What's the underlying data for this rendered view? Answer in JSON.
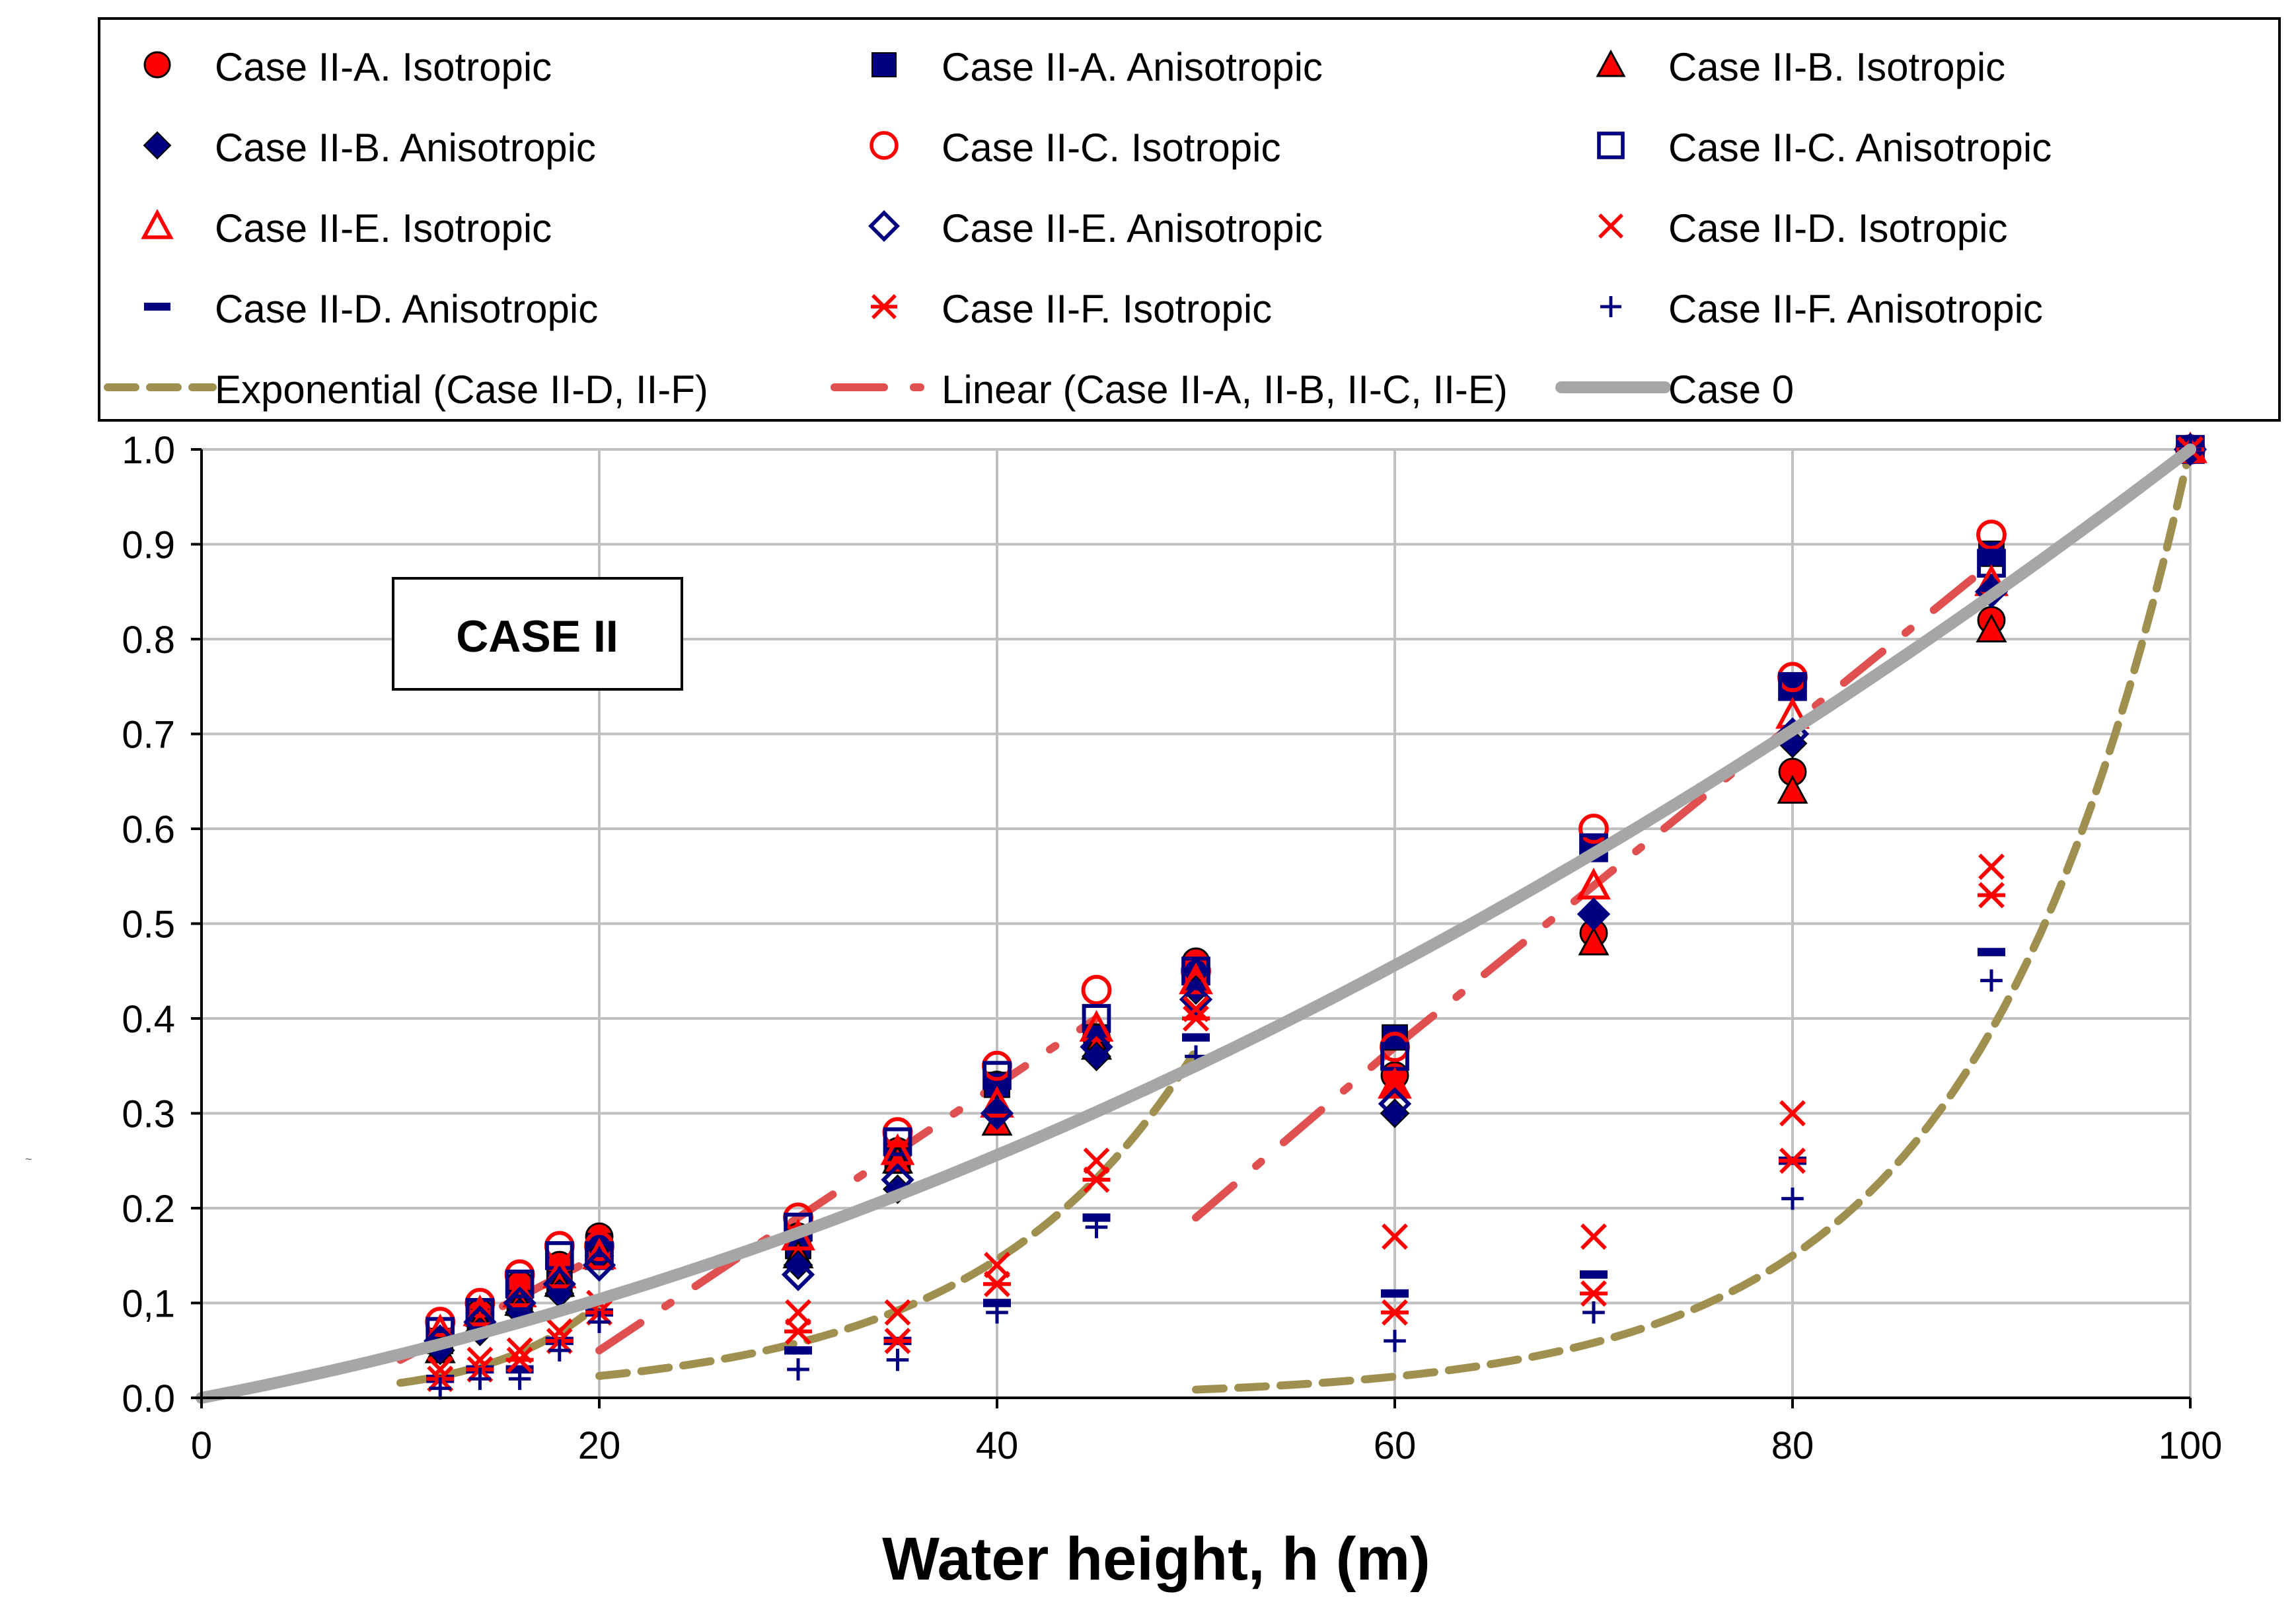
{
  "chart_data": {
    "type": "scatter",
    "title": "",
    "xlabel": "Water height, h (m)",
    "ylabel": "",
    "annotation": "CASE II",
    "stray_label": "~",
    "xlim": [
      0,
      100
    ],
    "ylim": [
      0,
      1
    ],
    "grid": true,
    "legend_position": "top",
    "x_ticks": [
      "0",
      "20",
      "40",
      "60",
      "80",
      "100"
    ],
    "y_ticks": [
      "0.0",
      "0,1",
      "0.2",
      "0.3",
      "0.4",
      "0.5",
      "0.6",
      "0.7",
      "0.8",
      "0.9",
      "1.0"
    ],
    "colors": {
      "red": "#ff0000",
      "navy": "#000080",
      "olive": "#a09050",
      "salmon": "#e05050",
      "gray": "#a6a6a6"
    },
    "series": [
      {
        "name": "Case II-A. Isotropic",
        "marker": "circle-filled",
        "color": "#ff0000",
        "points": [
          [
            12,
            0.06
          ],
          [
            14,
            0.09
          ],
          [
            16,
            0.12
          ],
          [
            18,
            0.14
          ],
          [
            20,
            0.17
          ],
          [
            30,
            0.17
          ],
          [
            35,
            0.26
          ],
          [
            40,
            0.33
          ],
          [
            45,
            0.38
          ],
          [
            50,
            0.46
          ],
          [
            60,
            0.34
          ],
          [
            70,
            0.49
          ],
          [
            80,
            0.66
          ],
          [
            90,
            0.82
          ],
          [
            100,
            1.0
          ]
        ]
      },
      {
        "name": "Case II-A. Anisotropic",
        "marker": "square-filled",
        "color": "#000080",
        "points": [
          [
            12,
            0.06
          ],
          [
            14,
            0.08
          ],
          [
            16,
            0.1
          ],
          [
            18,
            0.12
          ],
          [
            20,
            0.16
          ],
          [
            30,
            0.16
          ],
          [
            35,
            0.25
          ],
          [
            40,
            0.33
          ],
          [
            45,
            0.38
          ],
          [
            50,
            0.45
          ],
          [
            60,
            0.38
          ],
          [
            70,
            0.58
          ],
          [
            80,
            0.75
          ],
          [
            90,
            0.89
          ],
          [
            100,
            1.0
          ]
        ]
      },
      {
        "name": "Case II-B. Isotropic",
        "marker": "triangle-filled",
        "color": "#ff0000",
        "points": [
          [
            12,
            0.05
          ],
          [
            14,
            0.08
          ],
          [
            16,
            0.1
          ],
          [
            18,
            0.12
          ],
          [
            20,
            0.15
          ],
          [
            30,
            0.15
          ],
          [
            35,
            0.25
          ],
          [
            40,
            0.29
          ],
          [
            45,
            0.37
          ],
          [
            50,
            0.44
          ],
          [
            60,
            0.33
          ],
          [
            70,
            0.48
          ],
          [
            80,
            0.64
          ],
          [
            90,
            0.81
          ],
          [
            100,
            1.0
          ]
        ]
      },
      {
        "name": "Case II-B. Anisotropic",
        "marker": "diamond-filled",
        "color": "#000080",
        "points": [
          [
            12,
            0.05
          ],
          [
            14,
            0.07
          ],
          [
            16,
            0.09
          ],
          [
            18,
            0.11
          ],
          [
            20,
            0.15
          ],
          [
            30,
            0.14
          ],
          [
            35,
            0.22
          ],
          [
            40,
            0.3
          ],
          [
            45,
            0.36
          ],
          [
            50,
            0.43
          ],
          [
            60,
            0.3
          ],
          [
            70,
            0.51
          ],
          [
            80,
            0.69
          ],
          [
            90,
            0.85
          ],
          [
            100,
            1.0
          ]
        ]
      },
      {
        "name": "Case II-C. Isotropic",
        "marker": "circle-open",
        "color": "#ff0000",
        "points": [
          [
            12,
            0.08
          ],
          [
            14,
            0.1
          ],
          [
            16,
            0.13
          ],
          [
            18,
            0.16
          ],
          [
            20,
            0.16
          ],
          [
            30,
            0.19
          ],
          [
            35,
            0.28
          ],
          [
            40,
            0.35
          ],
          [
            45,
            0.43
          ],
          [
            50,
            0.45
          ],
          [
            60,
            0.37
          ],
          [
            70,
            0.6
          ],
          [
            80,
            0.76
          ],
          [
            90,
            0.91
          ],
          [
            100,
            1.0
          ]
        ]
      },
      {
        "name": "Case II-C. Anisotropic",
        "marker": "square-open",
        "color": "#000080",
        "points": [
          [
            12,
            0.07
          ],
          [
            14,
            0.09
          ],
          [
            16,
            0.12
          ],
          [
            18,
            0.15
          ],
          [
            20,
            0.15
          ],
          [
            30,
            0.18
          ],
          [
            35,
            0.27
          ],
          [
            40,
            0.34
          ],
          [
            45,
            0.4
          ],
          [
            50,
            0.45
          ],
          [
            60,
            0.36
          ],
          [
            70,
            0.58
          ],
          [
            80,
            0.75
          ],
          [
            90,
            0.88
          ],
          [
            100,
            1.0
          ]
        ]
      },
      {
        "name": "Case II-E. Isotropic",
        "marker": "triangle-open",
        "color": "#ff0000",
        "points": [
          [
            12,
            0.07
          ],
          [
            14,
            0.09
          ],
          [
            16,
            0.11
          ],
          [
            18,
            0.13
          ],
          [
            20,
            0.15
          ],
          [
            30,
            0.17
          ],
          [
            35,
            0.26
          ],
          [
            40,
            0.31
          ],
          [
            45,
            0.39
          ],
          [
            50,
            0.44
          ],
          [
            60,
            0.33
          ],
          [
            70,
            0.54
          ],
          [
            80,
            0.72
          ],
          [
            90,
            0.86
          ],
          [
            100,
            1.0
          ]
        ]
      },
      {
        "name": "Case II-E. Anisotropic",
        "marker": "diamond-open",
        "color": "#000080",
        "points": [
          [
            12,
            0.06
          ],
          [
            14,
            0.08
          ],
          [
            16,
            0.1
          ],
          [
            18,
            0.12
          ],
          [
            20,
            0.14
          ],
          [
            30,
            0.13
          ],
          [
            35,
            0.23
          ],
          [
            40,
            0.3
          ],
          [
            45,
            0.37
          ],
          [
            50,
            0.42
          ],
          [
            60,
            0.31
          ],
          [
            70,
            0.51
          ],
          [
            80,
            0.7
          ],
          [
            90,
            0.85
          ],
          [
            100,
            1.0
          ]
        ]
      },
      {
        "name": "Case II-D. Isotropic",
        "marker": "x",
        "color": "#ff0000",
        "points": [
          [
            12,
            0.03
          ],
          [
            14,
            0.04
          ],
          [
            16,
            0.05
          ],
          [
            18,
            0.07
          ],
          [
            20,
            0.1
          ],
          [
            30,
            0.09
          ],
          [
            35,
            0.09
          ],
          [
            40,
            0.14
          ],
          [
            45,
            0.25
          ],
          [
            50,
            0.41
          ],
          [
            60,
            0.17
          ],
          [
            70,
            0.17
          ],
          [
            80,
            0.3
          ],
          [
            90,
            0.56
          ],
          [
            100,
            1.0
          ]
        ]
      },
      {
        "name": "Case II-D. Anisotropic",
        "marker": "dash",
        "color": "#000080",
        "points": [
          [
            12,
            0.02
          ],
          [
            14,
            0.03
          ],
          [
            16,
            0.03
          ],
          [
            18,
            0.06
          ],
          [
            20,
            0.09
          ],
          [
            30,
            0.05
          ],
          [
            35,
            0.06
          ],
          [
            40,
            0.1
          ],
          [
            45,
            0.19
          ],
          [
            50,
            0.38
          ],
          [
            60,
            0.11
          ],
          [
            70,
            0.13
          ],
          [
            80,
            0.25
          ],
          [
            90,
            0.47
          ],
          [
            100,
            1.0
          ]
        ]
      },
      {
        "name": "Case II-F. Isotropic",
        "marker": "asterisk",
        "color": "#ff0000",
        "points": [
          [
            12,
            0.02
          ],
          [
            14,
            0.03
          ],
          [
            16,
            0.04
          ],
          [
            18,
            0.06
          ],
          [
            20,
            0.09
          ],
          [
            30,
            0.07
          ],
          [
            35,
            0.06
          ],
          [
            40,
            0.12
          ],
          [
            45,
            0.23
          ],
          [
            50,
            0.4
          ],
          [
            60,
            0.09
          ],
          [
            70,
            0.11
          ],
          [
            80,
            0.25
          ],
          [
            90,
            0.53
          ],
          [
            100,
            1.0
          ]
        ]
      },
      {
        "name": "Case II-F. Anisotropic",
        "marker": "plus",
        "color": "#000080",
        "points": [
          [
            12,
            0.01
          ],
          [
            14,
            0.02
          ],
          [
            16,
            0.02
          ],
          [
            18,
            0.05
          ],
          [
            20,
            0.08
          ],
          [
            30,
            0.03
          ],
          [
            35,
            0.04
          ],
          [
            40,
            0.09
          ],
          [
            45,
            0.18
          ],
          [
            50,
            0.36
          ],
          [
            60,
            0.06
          ],
          [
            70,
            0.09
          ],
          [
            80,
            0.21
          ],
          [
            90,
            0.44
          ],
          [
            100,
            1.0
          ]
        ]
      }
    ],
    "trendlines": [
      {
        "name": "Exponential (Case II-D, II-F)",
        "label": "Exponential (Case II-D, II-F)",
        "style": "dashed",
        "color": "#a09050",
        "segments": [
          {
            "from": 10,
            "to": 20,
            "a": 0.0025,
            "b": 0.1844
          },
          {
            "from": 20,
            "to": 50,
            "a": 0.00365,
            "b": 0.0922
          },
          {
            "from": 50,
            "to": 100,
            "a": 7.5e-05,
            "b": 0.095
          }
        ]
      },
      {
        "name": "Linear (Case II-A, II-B, II-C, II-E)",
        "label": "Linear (Case II-A, II-B, II-C, II-E)",
        "style": "dash-dot",
        "color": "#e05050",
        "segments": [
          {
            "x": [
              10,
              20
            ],
            "y": [
              0.04,
              0.15
            ]
          },
          {
            "x": [
              20,
              45
            ],
            "y": [
              0.05,
              0.4
            ]
          },
          {
            "x": [
              50,
              60
            ],
            "y": [
              0.19,
              0.37
            ]
          },
          {
            "x": [
              60,
              90
            ],
            "y": [
              0.37,
              0.88
            ]
          }
        ]
      },
      {
        "name": "Case 0",
        "label": "Case 0",
        "style": "solid",
        "color": "#a6a6a6",
        "curve": {
          "from": 0,
          "to": 100,
          "formula": "y = 0.00006*x^2 + 0.004*x"
        }
      }
    ]
  }
}
